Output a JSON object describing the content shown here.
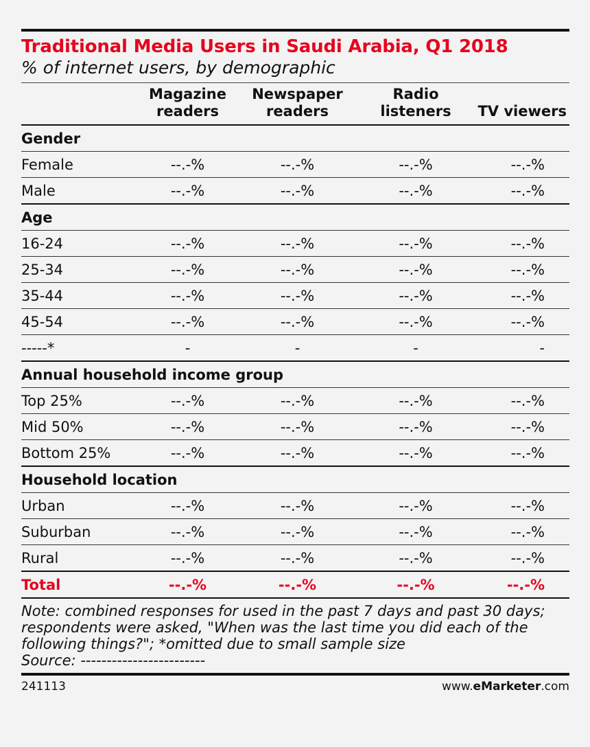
{
  "chart_data": {
    "type": "table",
    "title": "Traditional Media Users in Saudi Arabia, Q1 2018",
    "subtitle": "% of internet users, by demographic",
    "columns": [
      "Magazine readers",
      "Newspaper readers",
      "Radio listeners",
      "TV viewers"
    ],
    "groups": [
      {
        "label": "Gender",
        "rows": [
          {
            "label": "Female",
            "values": [
              "--.-%",
              "--.-%",
              "--.-%",
              "--.-%"
            ]
          },
          {
            "label": "Male",
            "values": [
              "--.-%",
              "--.-%",
              "--.-%",
              "--.-%"
            ]
          }
        ]
      },
      {
        "label": "Age",
        "rows": [
          {
            "label": "16-24",
            "values": [
              "--.-%",
              "--.-%",
              "--.-%",
              "--.-%"
            ]
          },
          {
            "label": "25-34",
            "values": [
              "--.-%",
              "--.-%",
              "--.-%",
              "--.-%"
            ]
          },
          {
            "label": "35-44",
            "values": [
              "--.-%",
              "--.-%",
              "--.-%",
              "--.-%"
            ]
          },
          {
            "label": "45-54",
            "values": [
              "--.-%",
              "--.-%",
              "--.-%",
              "--.-%"
            ]
          },
          {
            "label": "-----*",
            "values": [
              "-",
              "-",
              "-",
              "-"
            ]
          }
        ]
      },
      {
        "label": "Annual household income group",
        "rows": [
          {
            "label": "Top 25%",
            "values": [
              "--.-%",
              "--.-%",
              "--.-%",
              "--.-%"
            ]
          },
          {
            "label": "Mid 50%",
            "values": [
              "--.-%",
              "--.-%",
              "--.-%",
              "--.-%"
            ]
          },
          {
            "label": "Bottom 25%",
            "values": [
              "--.-%",
              "--.-%",
              "--.-%",
              "--.-%"
            ]
          }
        ]
      },
      {
        "label": "Household location",
        "rows": [
          {
            "label": "Urban",
            "values": [
              "--.-%",
              "--.-%",
              "--.-%",
              "--.-%"
            ]
          },
          {
            "label": "Suburban",
            "values": [
              "--.-%",
              "--.-%",
              "--.-%",
              "--.-%"
            ]
          },
          {
            "label": "Rural",
            "values": [
              "--.-%",
              "--.-%",
              "--.-%",
              "--.-%"
            ]
          }
        ]
      }
    ],
    "total": {
      "label": "Total",
      "values": [
        "--.-%",
        "--.-%",
        "--.-%",
        "--.-%"
      ]
    }
  },
  "note_lines": [
    "Note: combined responses for used in the past 7 days and past 30 days;",
    "respondents were asked, \"When was the last time you did each of the",
    "following things?\"; *omitted due to small sample size",
    "Source: ------------------------"
  ],
  "footer": {
    "id": "241113",
    "brand_prefix": "www.",
    "brand_bold": "eMarketer",
    "brand_suffix": ".com"
  },
  "colors": {
    "title": "#e4051f",
    "total": "#e4051f",
    "background": "#f3f3f3"
  }
}
